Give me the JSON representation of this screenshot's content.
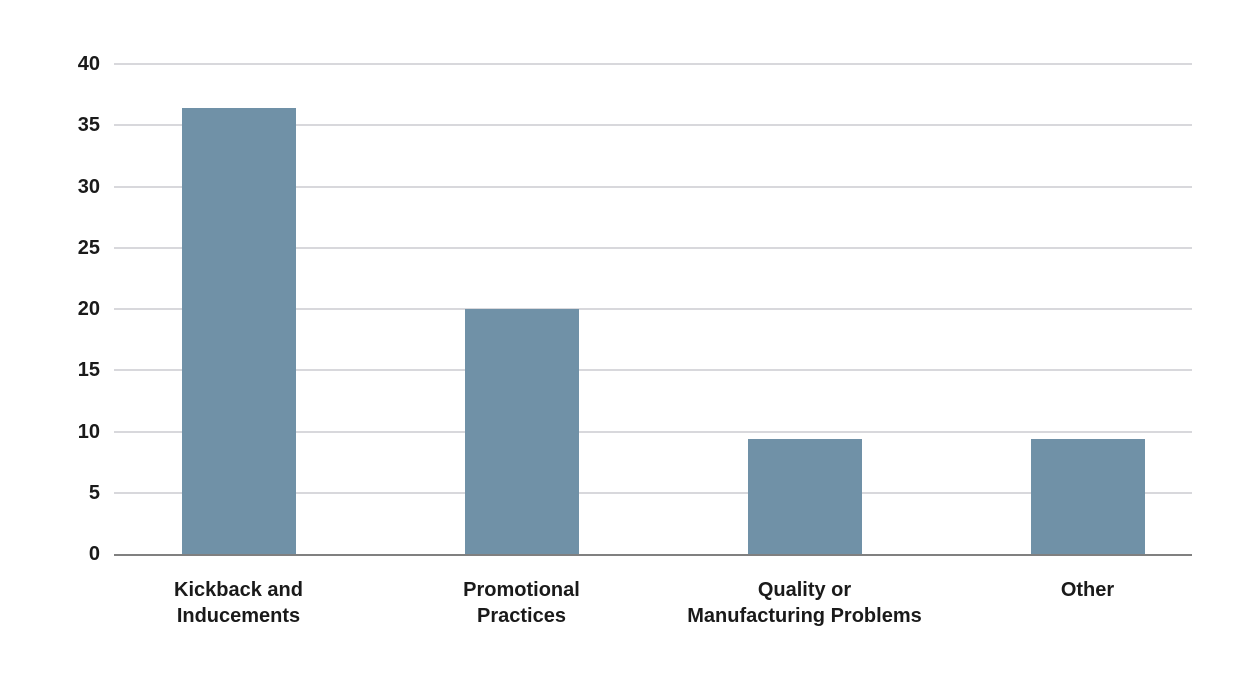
{
  "chart_data": {
    "type": "bar",
    "title": "",
    "xlabel": "",
    "ylabel": "",
    "categories": [
      "Kickback and\nInducements",
      "Promotional\nPractices",
      "Quality or\nManufacturing Problems",
      "Other"
    ],
    "values": [
      36.4,
      20,
      9.4,
      9.4
    ],
    "ylim": [
      0,
      40
    ],
    "yticks": [
      0,
      5,
      10,
      15,
      20,
      25,
      30,
      35,
      40
    ],
    "grid": true,
    "legend": "none",
    "colors": {
      "bar": "#7091A7",
      "gridline": "#D8D8DC",
      "axis_line": "#808080",
      "tick_label": "#1A1A1A",
      "category_label": "#1A1A1A",
      "background": "#FFFFFF"
    }
  }
}
